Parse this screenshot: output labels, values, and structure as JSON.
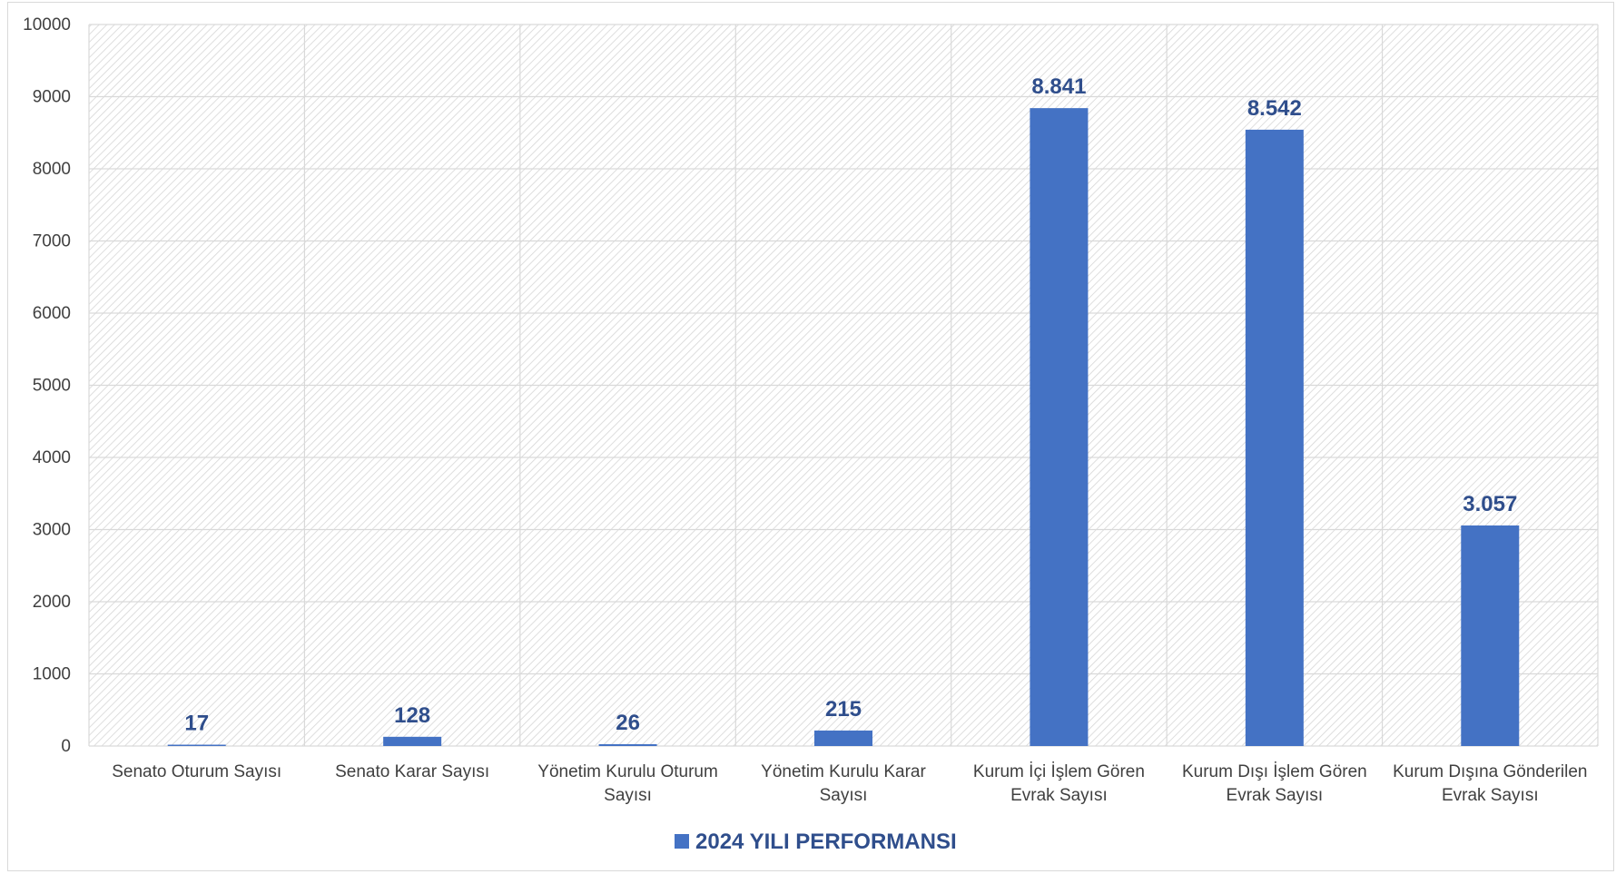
{
  "chart_data": {
    "type": "bar",
    "categories": [
      [
        "Senato Oturum Sayısı"
      ],
      [
        "Senato Karar Sayısı"
      ],
      [
        "Yönetim Kurulu Oturum",
        "Sayısı"
      ],
      [
        "Yönetim Kurulu Karar",
        "Sayısı"
      ],
      [
        "Kurum İçi İşlem Gören",
        "Evrak Sayısı"
      ],
      [
        "Kurum Dışı İşlem Gören",
        "Evrak Sayısı"
      ],
      [
        "Kurum Dışına Gönderilen",
        "Evrak Sayısı"
      ]
    ],
    "series": [
      {
        "name": "2024 YILI PERFORMANSI",
        "values": [
          17,
          128,
          26,
          215,
          8841,
          8542,
          3057
        ],
        "data_labels": [
          "17",
          "128",
          "26",
          "215",
          "8.841",
          "8.542",
          "3.057"
        ],
        "color": "#4472C4",
        "label_color": "#2F4E8C"
      }
    ],
    "ylim": [
      0,
      10000
    ],
    "yticks": [
      0,
      1000,
      2000,
      3000,
      4000,
      5000,
      6000,
      7000,
      8000,
      9000,
      10000
    ],
    "ytick_labels": [
      "0",
      "1000",
      "2000",
      "3000",
      "4000",
      "5000",
      "6000",
      "7000",
      "8000",
      "9000",
      "10000"
    ],
    "grid": true,
    "plot_background": "hatched-light-gray",
    "legend_position": "bottom",
    "title": "",
    "xlabel": "",
    "ylabel": ""
  }
}
